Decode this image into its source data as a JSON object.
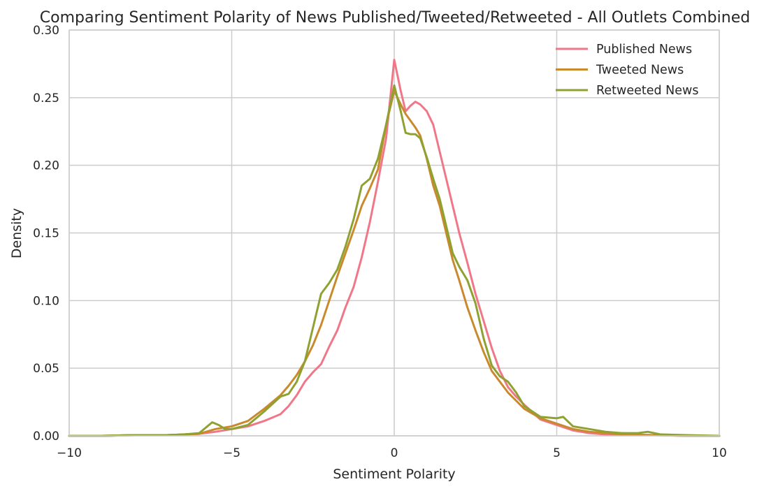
{
  "chart_data": {
    "type": "line",
    "title": "Comparing Sentiment Polarity of News Published/Tweeted/Retweeted - All Outlets Combined",
    "xlabel": "Sentiment Polarity",
    "ylabel": "Density",
    "xlim": [
      -10,
      10
    ],
    "ylim": [
      0,
      0.3
    ],
    "xticks": [
      -10,
      -5,
      0,
      5,
      10
    ],
    "xtick_labels": [
      "−10",
      "−5",
      "0",
      "5",
      "10"
    ],
    "yticks": [
      0,
      0.05,
      0.1,
      0.15,
      0.2,
      0.25,
      0.3
    ],
    "ytick_labels": [
      "0.00",
      "0.05",
      "0.10",
      "0.15",
      "0.20",
      "0.25",
      "0.30"
    ],
    "grid": true,
    "legend_position": "top-right",
    "series": [
      {
        "name": "Published News",
        "color": "#f07788",
        "x": [
          -10,
          -9,
          -8,
          -7,
          -6.5,
          -6,
          -5.5,
          -5,
          -4.5,
          -4,
          -3.5,
          -3.25,
          -3,
          -2.75,
          -2.5,
          -2.25,
          -2,
          -1.75,
          -1.5,
          -1.25,
          -1,
          -0.75,
          -0.5,
          -0.25,
          0,
          0.2,
          0.35,
          0.5,
          0.65,
          0.8,
          1.0,
          1.2,
          1.4,
          1.6,
          1.8,
          2.0,
          2.25,
          2.5,
          2.75,
          3.0,
          3.25,
          3.5,
          3.75,
          4.0,
          4.5,
          5.0,
          5.5,
          6.0,
          6.5,
          7.0,
          8.0,
          9.0,
          10.0
        ],
        "y": [
          0.0,
          0.0,
          0.0005,
          0.0005,
          0.001,
          0.0015,
          0.003,
          0.005,
          0.007,
          0.011,
          0.016,
          0.022,
          0.03,
          0.04,
          0.047,
          0.053,
          0.066,
          0.078,
          0.095,
          0.11,
          0.132,
          0.158,
          0.188,
          0.22,
          0.278,
          0.255,
          0.24,
          0.244,
          0.247,
          0.245,
          0.24,
          0.23,
          0.21,
          0.19,
          0.17,
          0.15,
          0.128,
          0.105,
          0.085,
          0.065,
          0.048,
          0.036,
          0.029,
          0.023,
          0.012,
          0.008,
          0.004,
          0.002,
          0.001,
          0.001,
          0.0005,
          0.0,
          0.0
        ]
      },
      {
        "name": "Tweeted News",
        "color": "#c98a2e",
        "x": [
          -10,
          -9,
          -8,
          -7,
          -6.5,
          -6,
          -5.5,
          -5,
          -4.5,
          -4,
          -3.5,
          -3.25,
          -3,
          -2.75,
          -2.5,
          -2.25,
          -2,
          -1.75,
          -1.5,
          -1.25,
          -1,
          -0.75,
          -0.5,
          -0.25,
          0,
          0.2,
          0.35,
          0.5,
          0.65,
          0.8,
          1.0,
          1.2,
          1.4,
          1.6,
          1.8,
          2.0,
          2.25,
          2.5,
          2.75,
          3.0,
          3.25,
          3.5,
          3.75,
          4.0,
          4.5,
          5.0,
          5.5,
          6.0,
          6.5,
          7.0,
          8.0,
          9.0,
          10.0
        ],
        "y": [
          0.0,
          0.0,
          0.0005,
          0.0005,
          0.001,
          0.0015,
          0.005,
          0.007,
          0.011,
          0.02,
          0.03,
          0.037,
          0.045,
          0.055,
          0.067,
          0.082,
          0.1,
          0.118,
          0.135,
          0.152,
          0.17,
          0.183,
          0.197,
          0.23,
          0.255,
          0.245,
          0.238,
          0.233,
          0.228,
          0.222,
          0.205,
          0.185,
          0.17,
          0.15,
          0.13,
          0.115,
          0.095,
          0.078,
          0.062,
          0.048,
          0.04,
          0.032,
          0.026,
          0.02,
          0.013,
          0.009,
          0.005,
          0.003,
          0.002,
          0.001,
          0.0005,
          0.0,
          0.0
        ]
      },
      {
        "name": "Retweeted News",
        "color": "#8fa130",
        "x": [
          -10,
          -9,
          -8,
          -7,
          -6.5,
          -6,
          -5.8,
          -5.6,
          -5.4,
          -5.2,
          -5,
          -4.5,
          -4,
          -3.5,
          -3.25,
          -3,
          -2.75,
          -2.5,
          -2.25,
          -2,
          -1.75,
          -1.5,
          -1.25,
          -1,
          -0.75,
          -0.5,
          -0.25,
          0,
          0.2,
          0.35,
          0.5,
          0.65,
          0.8,
          1.0,
          1.2,
          1.4,
          1.6,
          1.8,
          2.0,
          2.25,
          2.5,
          2.75,
          3.0,
          3.25,
          3.5,
          3.75,
          4.0,
          4.5,
          5.0,
          5.2,
          5.5,
          6.0,
          6.5,
          7.0,
          7.5,
          7.8,
          8.2,
          9.0,
          10.0
        ],
        "y": [
          0.0,
          0.0,
          0.0005,
          0.0005,
          0.001,
          0.002,
          0.006,
          0.01,
          0.008,
          0.005,
          0.005,
          0.008,
          0.018,
          0.029,
          0.031,
          0.04,
          0.055,
          0.08,
          0.105,
          0.113,
          0.123,
          0.14,
          0.16,
          0.185,
          0.19,
          0.205,
          0.23,
          0.259,
          0.24,
          0.224,
          0.223,
          0.223,
          0.22,
          0.206,
          0.19,
          0.175,
          0.155,
          0.135,
          0.125,
          0.115,
          0.098,
          0.072,
          0.052,
          0.044,
          0.04,
          0.032,
          0.022,
          0.014,
          0.013,
          0.014,
          0.007,
          0.005,
          0.003,
          0.002,
          0.002,
          0.003,
          0.001,
          0.0005,
          0.0
        ]
      }
    ]
  }
}
